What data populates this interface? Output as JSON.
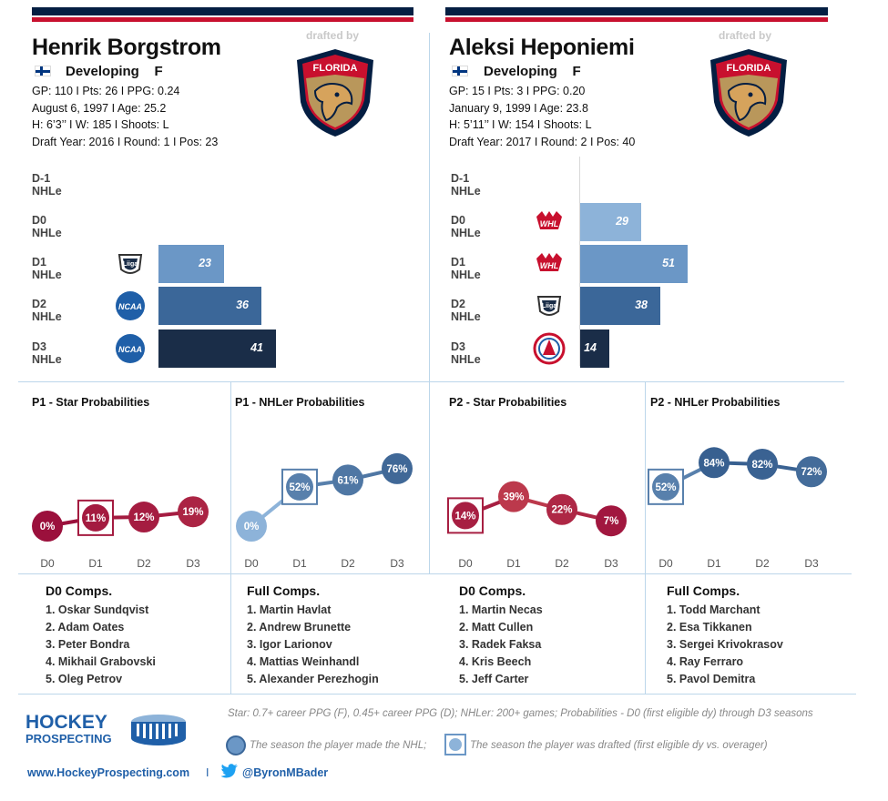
{
  "players": [
    {
      "name": "Henrik Borgstrom",
      "drafted_label": "drafted by",
      "team_logo": "FLORIDA",
      "status": "Developing",
      "position": "F",
      "info": [
        "GP: 110 I Pts: 26 I PPG: 0.24",
        "August 6, 1997 I Age: 25.2",
        "H: 6’3’’ I W: 185 I Shoots: L",
        "Draft Year: 2016 I Round: 1 I Pos: 23"
      ],
      "nhle": [
        {
          "label": "D-1 NHLe",
          "league": "",
          "value": null
        },
        {
          "label": "D0 NHLe",
          "league": "",
          "value": null
        },
        {
          "label": "D1 NHLe",
          "league": "liiga-icon",
          "value": 23
        },
        {
          "label": "D2 NHLe",
          "league": "ncaa-icon",
          "value": 36
        },
        {
          "label": "D3 NHLe",
          "league": "ncaa-icon",
          "value": 41
        }
      ],
      "comps": {
        "d0_title": "D0 Comps.",
        "d0": [
          "1. Oskar Sundqvist",
          "2. Adam Oates",
          "3. Peter Bondra",
          "4. Mikhail Grabovski",
          "5. Oleg Petrov"
        ],
        "full_title": "Full Comps.",
        "full": [
          "1. Martin Havlat",
          "2. Andrew Brunette",
          "3. Igor Larionov",
          "4. Mattias Weinhandl",
          "5. Alexander Perezhogin"
        ]
      }
    },
    {
      "name": "Aleksi Heponiemi",
      "drafted_label": "drafted by",
      "team_logo": "FLORIDA",
      "status": "Developing",
      "position": "F",
      "info": [
        "GP: 15 I Pts: 3 I PPG: 0.20",
        "January 9, 1999 I Age: 23.8",
        "H: 5’11’’ I W: 154 I Shoots: L",
        "Draft Year: 2017 I Round: 2 I Pos: 40"
      ],
      "nhle": [
        {
          "label": "D-1 NHLe",
          "league": "",
          "value": null
        },
        {
          "label": "D0 NHLe",
          "league": "whl-icon",
          "value": 29
        },
        {
          "label": "D1 NHLe",
          "league": "whl-icon",
          "value": 51
        },
        {
          "label": "D2 NHLe",
          "league": "liiga-icon",
          "value": 38
        },
        {
          "label": "D3 NHLe",
          "league": "ahl-icon",
          "value": 14
        }
      ],
      "comps": {
        "d0_title": "D0 Comps.",
        "d0": [
          "1. Martin Necas",
          "2. Matt Cullen",
          "3. Radek Faksa",
          "4. Kris Beech",
          "5. Jeff Carter"
        ],
        "full_title": "Full Comps.",
        "full": [
          "1. Todd Marchant",
          "2. Esa Tikkanen",
          "3. Sergei Krivokrasov",
          "4. Ray Ferraro",
          "5. Pavol Demitra"
        ]
      }
    }
  ],
  "chart_data": [
    {
      "type": "line",
      "title": "P1 - Star Probabilities",
      "x": [
        "D0",
        "D1",
        "D2",
        "D3"
      ],
      "values": [
        0,
        11,
        12,
        19
      ],
      "unit": "%",
      "drafted_index": 1,
      "nhl_index": null,
      "palette": "red"
    },
    {
      "type": "line",
      "title": "P1 - NHLer Probabilities",
      "x": [
        "D0",
        "D1",
        "D2",
        "D3"
      ],
      "values": [
        0,
        52,
        61,
        76
      ],
      "unit": "%",
      "drafted_index": 1,
      "nhl_index": null,
      "palette": "blue"
    },
    {
      "type": "line",
      "title": "P2 - Star Probabilities",
      "x": [
        "D0",
        "D1",
        "D2",
        "D3"
      ],
      "values": [
        14,
        39,
        22,
        7
      ],
      "unit": "%",
      "drafted_index": 0,
      "nhl_index": null,
      "palette": "red"
    },
    {
      "type": "line",
      "title": "P2 - NHLer Probabilities",
      "x": [
        "D0",
        "D1",
        "D2",
        "D3"
      ],
      "values": [
        52,
        84,
        82,
        72
      ],
      "unit": "%",
      "drafted_index": 0,
      "nhl_index": null,
      "palette": "blue"
    },
    {
      "type": "bar",
      "orientation": "horizontal",
      "title": "",
      "categories": [
        "D-1 NHLe",
        "D0 NHLe",
        "D1 NHLe",
        "D2 NHLe",
        "D3 NHLe"
      ],
      "values": [
        null,
        null,
        23,
        36,
        41
      ],
      "max": 51
    },
    {
      "type": "bar",
      "orientation": "horizontal",
      "title": "",
      "categories": [
        "D-1 NHLe",
        "D0 NHLe",
        "D1 NHLe",
        "D2 NHLe",
        "D3 NHLe"
      ],
      "values": [
        null,
        29,
        51,
        38,
        14
      ],
      "max": 51
    }
  ],
  "footer": {
    "brand_line1": "HOCKEY",
    "brand_line2": "PROSPECTING",
    "website": "www.HockeyProspecting.com",
    "separator": "I",
    "twitter": "@ByronMBader",
    "note": "Star: 0.7+ career PPG (F), 0.45+ career PPG (D); NHLer: 200+ games; Probabilities - D0 (first eligible dy) through D3 seasons",
    "legend_nhl": "The season the player made the NHL;",
    "legend_drafted": "The season the player was drafted (first eligible dy vs. overager)"
  },
  "colors": {
    "navy": "#041e42",
    "red": "#c8102e",
    "bar_d0": "#8db3d9",
    "bar_d1": "#6b97c6",
    "bar_d2": "#3b6799",
    "bar_d3": "#1a2d48",
    "rule": "#bcd6ea"
  }
}
